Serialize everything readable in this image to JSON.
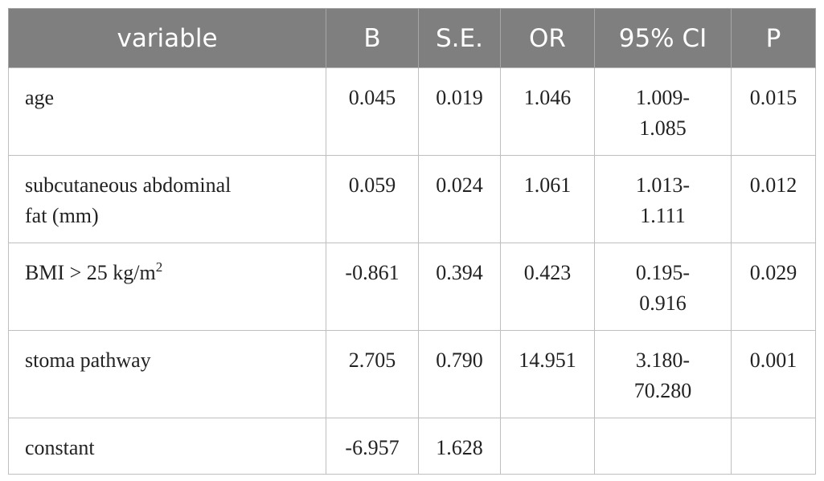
{
  "table": {
    "headers": [
      "variable",
      "B",
      "S.E.",
      "OR",
      "95% CI",
      "P"
    ],
    "rows": [
      {
        "variable": "age",
        "B": "0.045",
        "SE": "0.019",
        "OR": "1.046",
        "CI_low": "1.009-",
        "CI_high": "1.085",
        "P": "0.015"
      },
      {
        "variable_line1": "subcutaneous abdominal",
        "variable_line2": "fat (mm)",
        "B": "0.059",
        "SE": "0.024",
        "OR": "1.061",
        "CI_low": "1.013-",
        "CI_high": "1.111",
        "P": "0.012"
      },
      {
        "variable": "BMI > 25 kg/m",
        "variable_sup": "2",
        "B": "-0.861",
        "SE": "0.394",
        "OR": "0.423",
        "CI_low": "0.195-",
        "CI_high": "0.916",
        "P": "0.029"
      },
      {
        "variable": "stoma pathway",
        "B": "2.705",
        "SE": "0.790",
        "OR": "14.951",
        "CI_low": "3.180-",
        "CI_high": "70.280",
        "P": "0.001"
      },
      {
        "variable": "constant",
        "B": "-6.957",
        "SE": "1.628",
        "OR": "",
        "CI_low": "",
        "CI_high": "",
        "P": ""
      }
    ]
  }
}
